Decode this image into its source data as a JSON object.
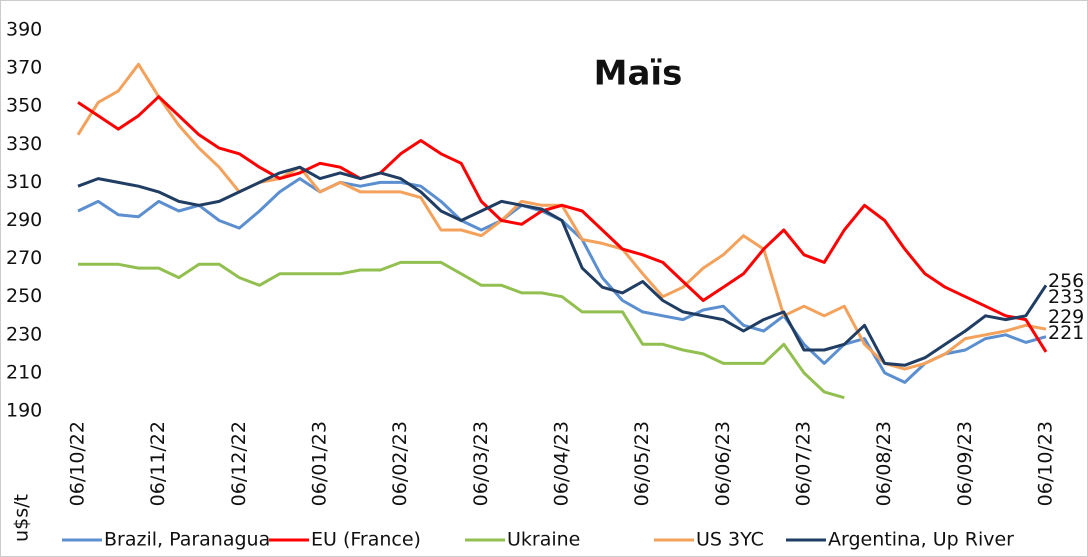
{
  "chart_data": {
    "type": "line",
    "title": "Maïs",
    "y_label": "u$s/t",
    "categories": [
      "06/10/22",
      null,
      null,
      null,
      "06/11/22",
      null,
      null,
      null,
      "06/12/22",
      null,
      null,
      null,
      "06/01/23",
      null,
      null,
      null,
      "06/02/23",
      null,
      null,
      null,
      "06/03/23",
      null,
      null,
      null,
      "06/04/23",
      null,
      null,
      null,
      "06/05/23",
      null,
      null,
      null,
      "06/06/23",
      null,
      null,
      null,
      "06/07/23",
      null,
      null,
      null,
      "06/08/23",
      null,
      null,
      null,
      "06/09/23",
      null,
      null,
      null,
      "06/10/23"
    ],
    "series": [
      {
        "name": "Brazil, Paranagua",
        "color": "#5b8fd0",
        "values": [
          295,
          300,
          293,
          292,
          300,
          295,
          298,
          290,
          286,
          295,
          305,
          312,
          305,
          310,
          308,
          310,
          310,
          308,
          300,
          290,
          285,
          290,
          298,
          295,
          290,
          280,
          260,
          248,
          242,
          240,
          238,
          243,
          245,
          235,
          232,
          240,
          225,
          215,
          225,
          228,
          210,
          205,
          215,
          220,
          222,
          228,
          230,
          226,
          229
        ]
      },
      {
        "name": "EU (France)",
        "color": "#ff0000",
        "values": [
          352,
          345,
          338,
          345,
          355,
          345,
          335,
          328,
          325,
          318,
          312,
          315,
          320,
          318,
          312,
          315,
          325,
          332,
          325,
          320,
          300,
          290,
          288,
          295,
          298,
          295,
          285,
          275,
          272,
          268,
          258,
          248,
          255,
          262,
          275,
          285,
          272,
          268,
          285,
          298,
          290,
          275,
          262,
          255,
          250,
          245,
          240,
          238,
          221
        ]
      },
      {
        "name": "Ukraine",
        "color": "#92c050",
        "values": [
          267,
          267,
          267,
          265,
          265,
          260,
          267,
          267,
          260,
          256,
          262,
          262,
          262,
          262,
          264,
          264,
          268,
          268,
          268,
          262,
          256,
          256,
          252,
          252,
          250,
          242,
          242,
          242,
          225,
          225,
          222,
          220,
          215,
          215,
          215,
          225,
          210,
          200,
          197,
          null,
          null,
          null,
          null,
          null,
          null,
          null,
          null,
          null,
          null
        ]
      },
      {
        "name": "US 3YC",
        "color": "#f4a15b",
        "values": [
          335,
          352,
          358,
          372,
          355,
          340,
          328,
          318,
          305,
          310,
          312,
          318,
          305,
          310,
          305,
          305,
          305,
          302,
          285,
          285,
          282,
          290,
          300,
          298,
          298,
          280,
          278,
          275,
          262,
          250,
          255,
          265,
          272,
          282,
          275,
          240,
          245,
          240,
          245,
          225,
          215,
          212,
          215,
          220,
          228,
          230,
          232,
          235,
          233
        ]
      },
      {
        "name": "Argentina, Up River",
        "color": "#203d63",
        "values": [
          308,
          312,
          310,
          308,
          305,
          300,
          298,
          300,
          305,
          310,
          315,
          318,
          312,
          315,
          312,
          315,
          312,
          305,
          295,
          290,
          295,
          300,
          298,
          296,
          290,
          265,
          255,
          252,
          258,
          248,
          242,
          240,
          238,
          232,
          238,
          242,
          222,
          222,
          225,
          235,
          215,
          214,
          218,
          225,
          232,
          240,
          238,
          240,
          256
        ]
      }
    ],
    "ylim": [
      190,
      390
    ],
    "yticks": [
      190,
      210,
      230,
      250,
      270,
      290,
      310,
      330,
      350,
      370,
      390
    ],
    "grid": false
  }
}
